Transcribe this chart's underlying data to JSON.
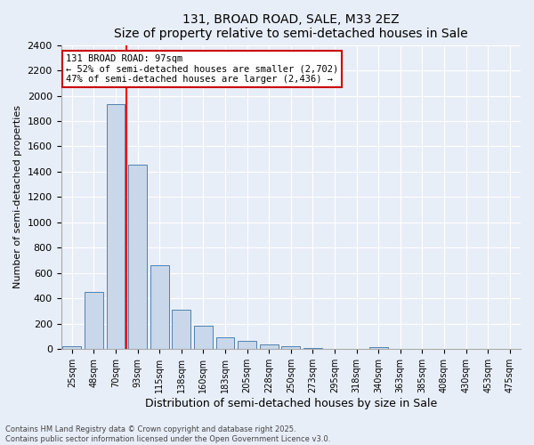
{
  "title1": "131, BROAD ROAD, SALE, M33 2EZ",
  "title2": "Size of property relative to semi-detached houses in Sale",
  "xlabel": "Distribution of semi-detached houses by size in Sale",
  "ylabel": "Number of semi-detached properties",
  "categories": [
    "25sqm",
    "48sqm",
    "70sqm",
    "93sqm",
    "115sqm",
    "138sqm",
    "160sqm",
    "183sqm",
    "205sqm",
    "228sqm",
    "250sqm",
    "273sqm",
    "295sqm",
    "318sqm",
    "340sqm",
    "363sqm",
    "385sqm",
    "408sqm",
    "430sqm",
    "453sqm",
    "475sqm"
  ],
  "values": [
    22,
    455,
    1930,
    1455,
    665,
    310,
    185,
    95,
    65,
    35,
    20,
    10,
    5,
    3,
    18,
    2,
    1,
    1,
    0,
    0,
    0
  ],
  "bar_color": "#c8d8ea",
  "bar_edge_color": "#5080b0",
  "red_line_x": 2.5,
  "property_label": "131 BROAD ROAD: 97sqm",
  "smaller_text": "← 52% of semi-detached houses are smaller (2,702)",
  "larger_text": "47% of semi-detached houses are larger (2,436) →",
  "annotation_box_color": "#ffffff",
  "annotation_box_edge": "#cc0000",
  "ylim": [
    0,
    2400
  ],
  "yticks": [
    0,
    200,
    400,
    600,
    800,
    1000,
    1200,
    1400,
    1600,
    1800,
    2000,
    2200,
    2400
  ],
  "footer1": "Contains HM Land Registry data © Crown copyright and database right 2025.",
  "footer2": "Contains public sector information licensed under the Open Government Licence v3.0.",
  "bg_color": "#e8eef8",
  "plot_bg_color": "#e8eef8"
}
